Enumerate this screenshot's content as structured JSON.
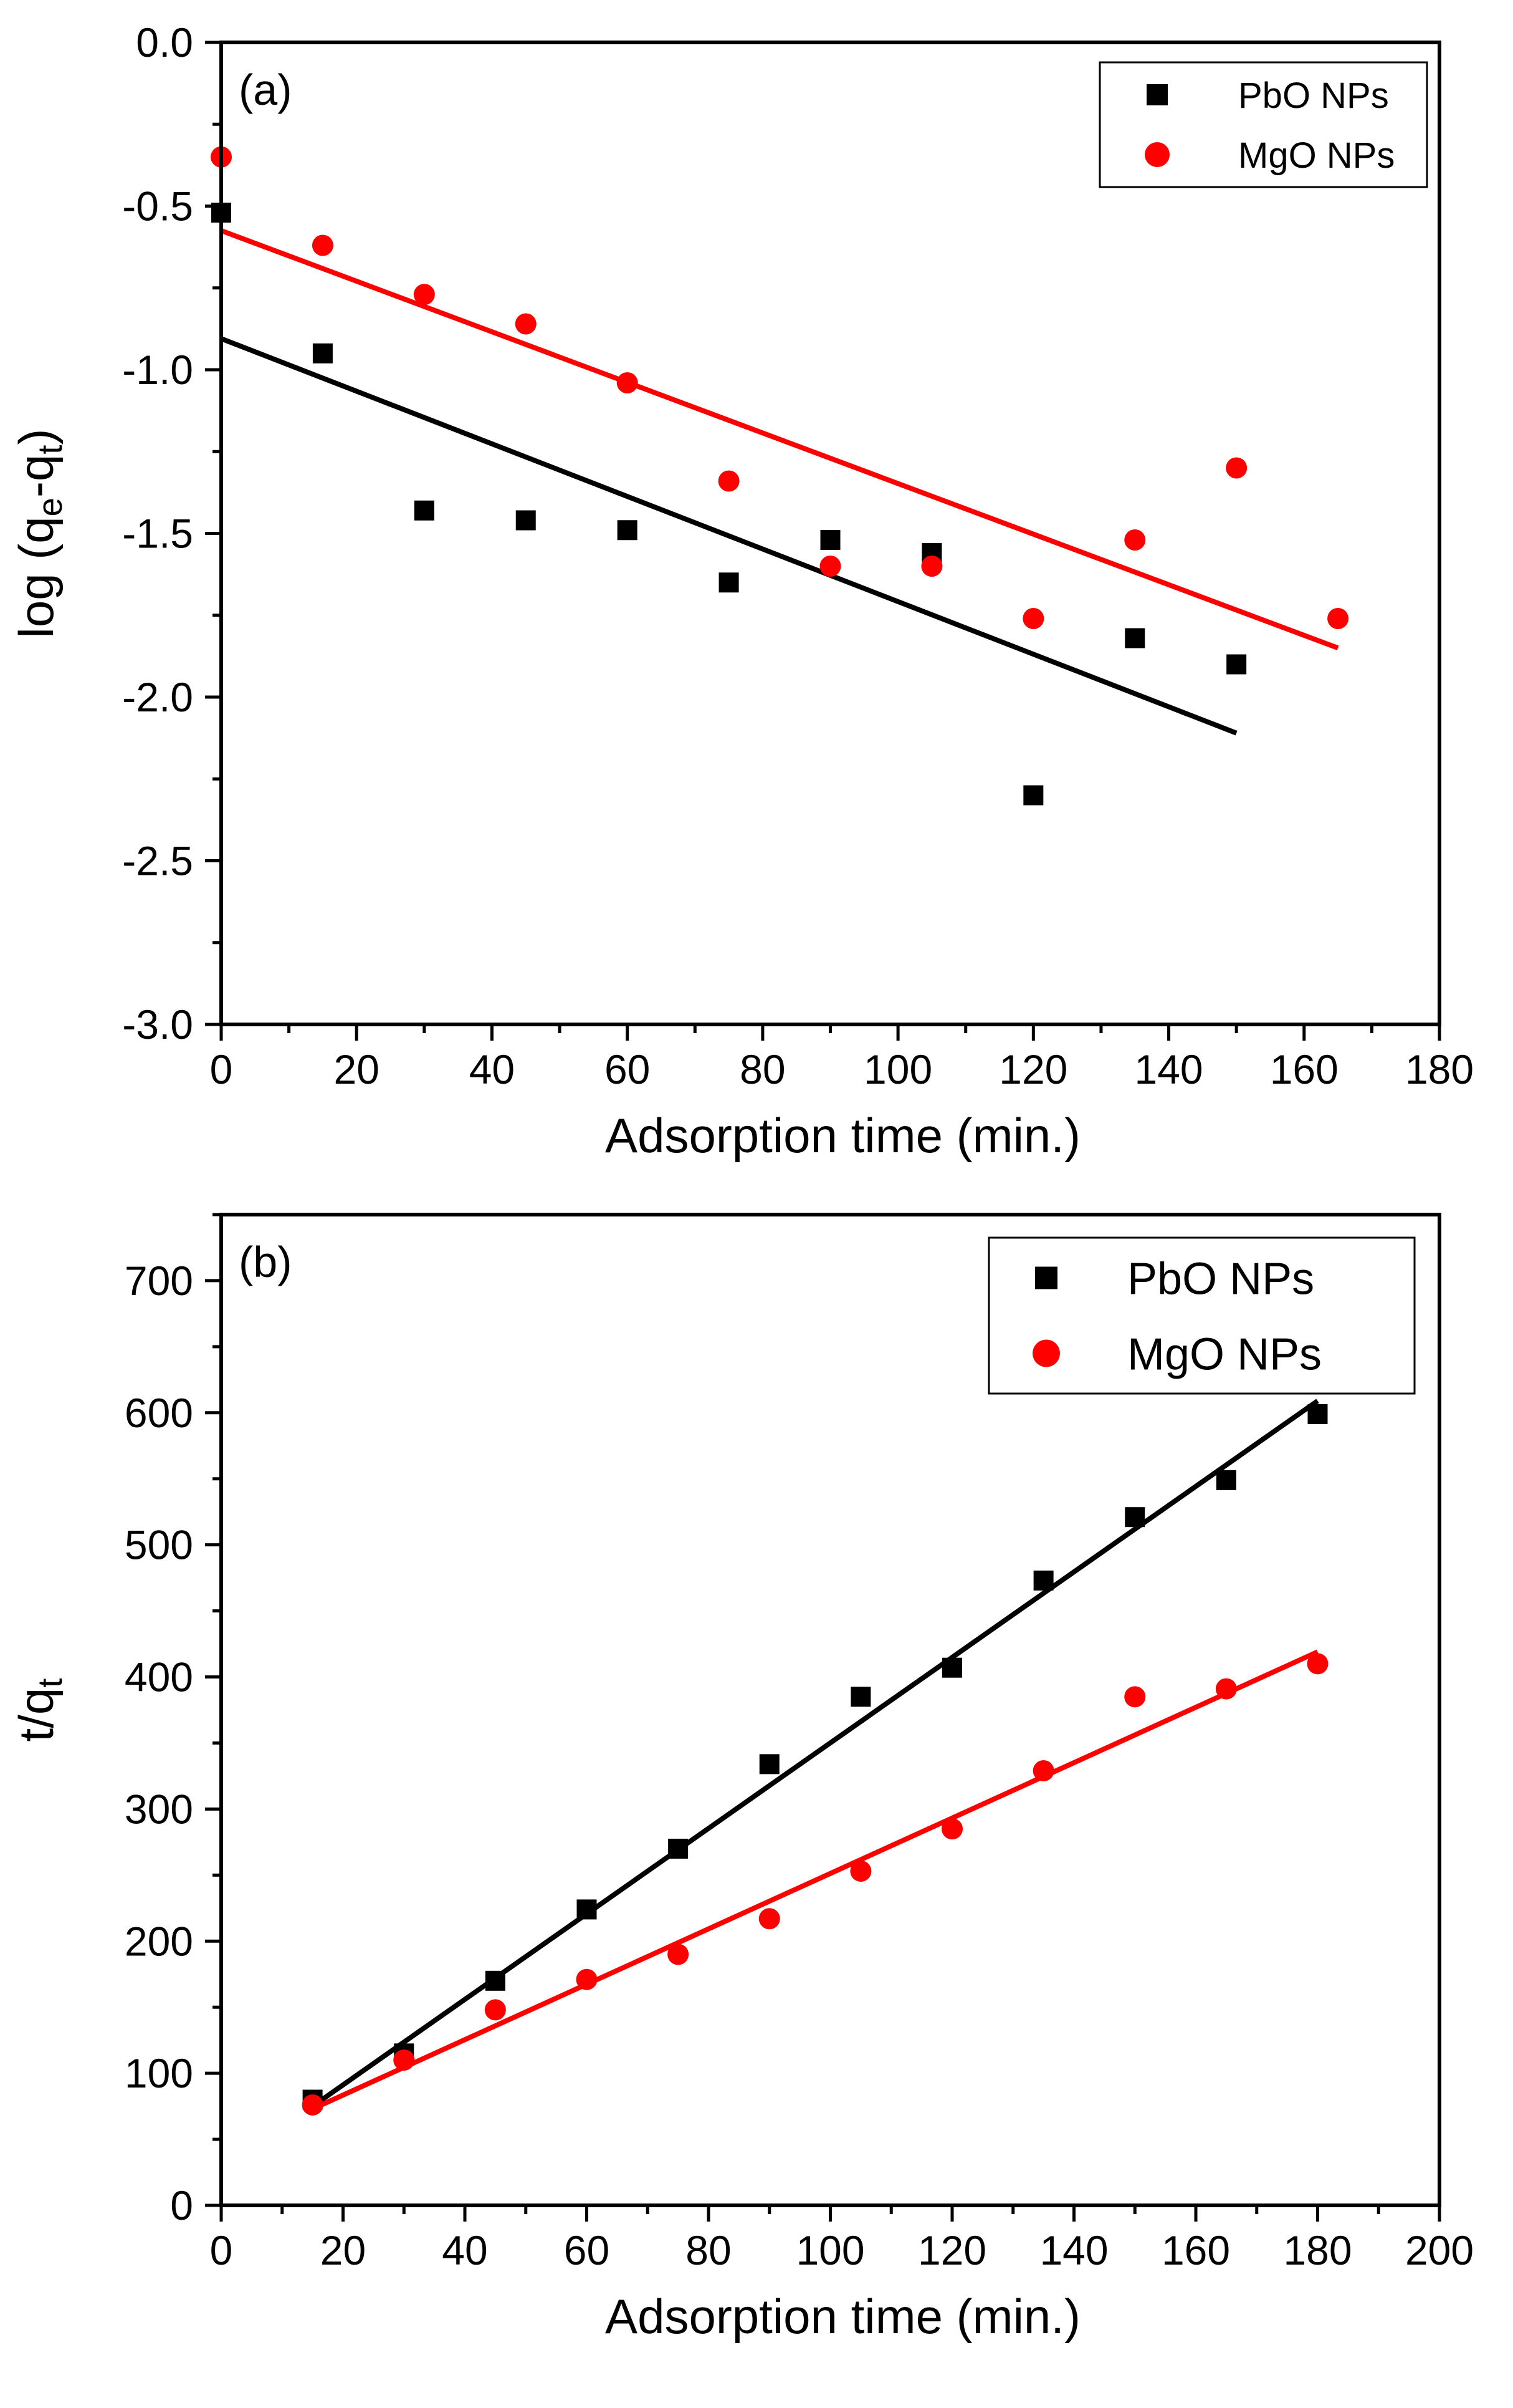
{
  "chart_data": [
    {
      "type": "scatter",
      "panel_label": "(a)",
      "xlabel": "Adsorption time (min.)",
      "ylabel": {
        "main": "log (q",
        "sub1": "e",
        "mid": "-q",
        "sub2": "t",
        "end": ")"
      },
      "xlim": [
        0,
        180
      ],
      "ylim": [
        -3.0,
        0.0
      ],
      "xticks": [
        0,
        20,
        40,
        60,
        80,
        100,
        120,
        140,
        160,
        180
      ],
      "yticks": [
        0.0,
        -0.5,
        -1.0,
        -1.5,
        -2.0,
        -2.5,
        -3.0
      ],
      "ytick_labels": [
        "0.0",
        "-0.5",
        "-1.0",
        "-1.5",
        "-2.0",
        "-2.5",
        "-3.0"
      ],
      "legend_position": "top-right",
      "series": [
        {
          "name": "PbO NPs",
          "marker": "square",
          "color": "#000000",
          "points": [
            [
              0,
              -0.52
            ],
            [
              15,
              -0.95
            ],
            [
              30,
              -1.43
            ],
            [
              45,
              -1.46
            ],
            [
              60,
              -1.49
            ],
            [
              75,
              -1.65
            ],
            [
              90,
              -1.52
            ],
            [
              105,
              -1.56
            ],
            [
              120,
              -2.3
            ],
            [
              135,
              -1.82
            ],
            [
              150,
              -1.9
            ]
          ],
          "fit": [
            [
              0,
              -0.905
            ],
            [
              150,
              -2.11
            ]
          ]
        },
        {
          "name": "MgO NPs",
          "marker": "circle",
          "color": "#ff0000",
          "points": [
            [
              0,
              -0.35
            ],
            [
              15,
              -0.62
            ],
            [
              30,
              -0.77
            ],
            [
              45,
              -0.86
            ],
            [
              60,
              -1.04
            ],
            [
              75,
              -1.34
            ],
            [
              90,
              -1.6
            ],
            [
              105,
              -1.6
            ],
            [
              120,
              -1.76
            ],
            [
              135,
              -1.52
            ],
            [
              150,
              -1.3
            ],
            [
              165,
              -1.76
            ]
          ],
          "fit": [
            [
              0,
              -0.575
            ],
            [
              165,
              -1.85
            ]
          ]
        }
      ]
    },
    {
      "type": "scatter",
      "panel_label": "(b)",
      "xlabel": "Adsorption time (min.)",
      "ylabel": {
        "main": "t/q",
        "sub": "t"
      },
      "xlim": [
        0,
        200
      ],
      "ylim": [
        0,
        750
      ],
      "xticks": [
        0,
        20,
        40,
        60,
        80,
        100,
        120,
        140,
        160,
        180,
        200
      ],
      "yticks": [
        0,
        100,
        200,
        300,
        400,
        500,
        600,
        700
      ],
      "legend_position": "top-right",
      "series": [
        {
          "name": "PbO NPs",
          "marker": "square",
          "color": "#000000",
          "points": [
            [
              15,
              80
            ],
            [
              30,
              115
            ],
            [
              45,
              170
            ],
            [
              60,
              224
            ],
            [
              75,
              270
            ],
            [
              90,
              334
            ],
            [
              105,
              385
            ],
            [
              120,
              407
            ],
            [
              135,
              473
            ],
            [
              150,
              521
            ],
            [
              165,
              549
            ],
            [
              180,
              599
            ]
          ],
          "fit": [
            [
              15,
              75
            ],
            [
              180,
              609
            ]
          ]
        },
        {
          "name": "MgO NPs",
          "marker": "circle",
          "color": "#ff0000",
          "points": [
            [
              15,
              76
            ],
            [
              30,
              110
            ],
            [
              45,
              148
            ],
            [
              60,
              171
            ],
            [
              75,
              190
            ],
            [
              90,
              217
            ],
            [
              105,
              253
            ],
            [
              120,
              285
            ],
            [
              135,
              329
            ],
            [
              150,
              385
            ],
            [
              165,
              391
            ],
            [
              180,
              410
            ]
          ],
          "fit": [
            [
              15,
              73
            ],
            [
              180,
              419
            ]
          ]
        }
      ]
    }
  ]
}
